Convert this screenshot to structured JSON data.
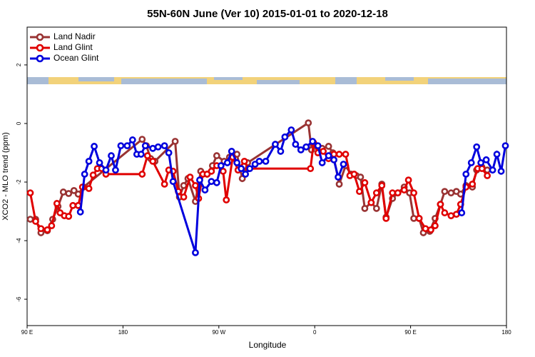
{
  "chart_data": {
    "type": "line",
    "title": "55N-60N June (Ver 10)   2015-01-01 to 2020-12-18",
    "x_label": "Longitude",
    "y_label": "XCO2 - MLO trend (ppm)",
    "xlim": [
      90,
      540
    ],
    "xticks": [
      {
        "value": 90,
        "label": "90 E"
      },
      180,
      {
        "value": 270,
        "label": "90 W"
      },
      {
        "value": 360,
        "label": "0"
      },
      {
        "value": 450,
        "label": "90 E"
      },
      {
        "value": 540,
        "label": "180"
      }
    ],
    "ylim": [
      -6.9,
      3.29
    ],
    "yticks": [
      -6,
      -4,
      -2,
      0,
      2
    ],
    "legend": "top-left",
    "series": [
      {
        "name": "Land Nadir",
        "color": "#993333",
        "x": [
          93,
          98,
          103,
          109,
          114,
          119,
          124,
          129,
          134,
          138,
          143,
          198,
          202,
          206,
          210,
          229,
          233,
          237,
          241,
          248,
          253,
          259,
          264,
          268,
          275,
          280,
          287,
          292,
          297,
          354,
          357,
          362,
          367,
          373,
          377,
          383,
          389,
          394,
          399,
          403,
          407,
          413,
          418,
          423,
          427,
          433,
          438,
          444,
          449,
          453,
          458,
          462,
          468,
          473,
          478,
          482,
          488,
          493,
          497,
          502,
          508,
          512,
          517,
          522
        ],
        "values": [
          -3.27,
          -3.27,
          -3.73,
          -3.66,
          -3.27,
          -2.83,
          -2.34,
          -2.39,
          -2.29,
          -2.41,
          -2.17,
          -0.54,
          -0.76,
          -1.2,
          -1.29,
          -0.61,
          -2.51,
          -2.12,
          -1.88,
          -2.66,
          -1.63,
          -1.73,
          -1.44,
          -1.1,
          -1.29,
          -1.15,
          -1.05,
          -1.88,
          -1.34,
          0.02,
          -0.9,
          -0.76,
          -0.85,
          -0.78,
          -1.0,
          -2.07,
          -1.44,
          -1.73,
          -1.78,
          -1.83,
          -2.9,
          -2.7,
          -2.9,
          -2.07,
          -3.2,
          -2.56,
          -2.37,
          -2.17,
          -2.37,
          -3.24,
          -3.24,
          -3.73,
          -3.68,
          -3.24,
          -2.76,
          -2.32,
          -2.37,
          -2.32,
          -2.41,
          -2.12,
          -2.17,
          -1.59,
          -1.49,
          -1.59
        ]
      },
      {
        "name": "Land Glint",
        "color": "#e00000",
        "x": [
          93,
          98,
          103,
          109,
          113,
          118,
          121,
          125,
          129,
          133,
          138,
          142,
          148,
          152,
          156,
          160,
          164,
          198,
          203,
          208,
          219,
          223,
          227,
          232,
          237,
          243,
          248,
          251,
          255,
          259,
          263,
          268,
          274,
          277,
          283,
          288,
          294,
          298,
          356,
          359,
          363,
          368,
          373,
          378,
          383,
          389,
          393,
          397,
          402,
          407,
          413,
          418,
          423,
          427,
          433,
          438,
          444,
          448,
          453,
          458,
          464,
          469,
          473,
          478,
          482,
          488,
          493,
          497,
          502,
          508,
          513,
          517,
          522
        ],
        "values": [
          -2.37,
          -3.34,
          -3.59,
          -3.63,
          -3.49,
          -2.73,
          -3.05,
          -3.15,
          -3.17,
          -2.8,
          -2.8,
          -2.17,
          -2.22,
          -1.76,
          -1.54,
          -1.54,
          -1.73,
          -1.73,
          -1.1,
          -1.29,
          -2.07,
          -1.59,
          -1.63,
          -2.32,
          -2.51,
          -1.83,
          -2.12,
          -2.56,
          -1.73,
          -1.73,
          -1.63,
          -1.44,
          -1.63,
          -2.61,
          -1.15,
          -1.59,
          -1.29,
          -1.54,
          -1.54,
          -0.66,
          -1.0,
          -0.95,
          -1.2,
          -1.05,
          -1.05,
          -1.05,
          -1.78,
          -1.73,
          -2.32,
          -2.02,
          -2.7,
          -2.37,
          -2.12,
          -3.24,
          -2.37,
          -2.37,
          -2.27,
          -1.93,
          -2.37,
          -3.24,
          -3.59,
          -3.63,
          -3.49,
          -2.76,
          -3.05,
          -3.15,
          -3.1,
          -2.76,
          -2.17,
          -2.07,
          -1.54,
          -1.54,
          -1.78
        ]
      },
      {
        "name": "Ocean Glint",
        "color": "#0000dd",
        "x": [
          140,
          144,
          148,
          153,
          158,
          164,
          169,
          173,
          178,
          184,
          189,
          193,
          197,
          201,
          208,
          213,
          219,
          223,
          227,
          248,
          252,
          257,
          263,
          268,
          272,
          278,
          282,
          287,
          291,
          295,
          299,
          304,
          308,
          314,
          323,
          328,
          332,
          338,
          342,
          347,
          352,
          358,
          363,
          367,
          373,
          378,
          382,
          387,
          null,
          498,
          502,
          507,
          512,
          516,
          521,
          527,
          531,
          535,
          539
        ],
        "values": [
          -3.02,
          -1.73,
          -1.29,
          -0.78,
          -1.34,
          -1.59,
          -1.1,
          -1.59,
          -0.76,
          -0.76,
          -0.56,
          -1.05,
          -1.05,
          -0.76,
          -0.85,
          -0.8,
          -0.76,
          -1.0,
          -1.98,
          -4.41,
          -1.93,
          -2.27,
          -1.98,
          -2.02,
          -1.44,
          -1.34,
          -0.95,
          -1.34,
          -1.54,
          -1.73,
          -1.54,
          -1.39,
          -1.29,
          -1.29,
          -0.71,
          -0.95,
          -0.46,
          -0.22,
          -0.71,
          -0.9,
          -0.8,
          -0.61,
          -0.76,
          -1.34,
          -1.1,
          -1.24,
          -1.83,
          -1.39,
          null,
          -3.05,
          -1.73,
          -1.34,
          -0.8,
          -1.34,
          -1.24,
          -1.59,
          -1.05,
          -1.63,
          -0.76
        ]
      }
    ]
  }
}
